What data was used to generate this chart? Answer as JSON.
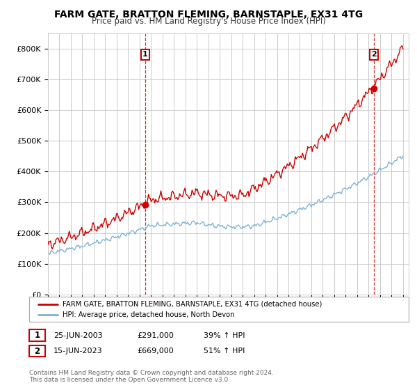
{
  "title": "FARM GATE, BRATTON FLEMING, BARNSTAPLE, EX31 4TG",
  "subtitle": "Price paid vs. HM Land Registry's House Price Index (HPI)",
  "property_color": "#cc0000",
  "hpi_color": "#7fb3d3",
  "background_color": "#ffffff",
  "grid_color": "#cccccc",
  "legend_property": "FARM GATE, BRATTON FLEMING, BARNSTAPLE, EX31 4TG (detached house)",
  "legend_hpi": "HPI: Average price, detached house, North Devon",
  "transaction1_label": "1",
  "transaction1_date": "25-JUN-2003",
  "transaction1_price": "£291,000",
  "transaction1_hpi": "39% ↑ HPI",
  "transaction1_x": 2003.48,
  "transaction1_y": 291000,
  "transaction2_label": "2",
  "transaction2_date": "15-JUN-2023",
  "transaction2_price": "£669,000",
  "transaction2_hpi": "51% ↑ HPI",
  "transaction2_x": 2023.45,
  "transaction2_y": 669000,
  "footer": "Contains HM Land Registry data © Crown copyright and database right 2024.\nThis data is licensed under the Open Government Licence v3.0.",
  "xmin": 1995.0,
  "xmax": 2026.5,
  "ylim": [
    0,
    850000
  ],
  "yticks": [
    0,
    100000,
    200000,
    300000,
    400000,
    500000,
    600000,
    700000,
    800000
  ],
  "ytick_labels": [
    "£0",
    "£100K",
    "£200K",
    "£300K",
    "£400K",
    "£500K",
    "£600K",
    "£700K",
    "£800K"
  ]
}
